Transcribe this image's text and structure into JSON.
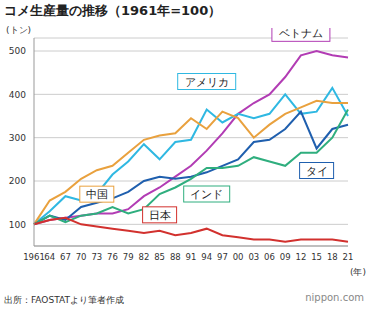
{
  "chart_data": {
    "type": "line",
    "title": "コメ生産量の推移（1961年=100）",
    "y_label": "(トン)",
    "x_label": "(年)",
    "source": "出所：FAOSTATより筆者作成",
    "credit": "nippon.com",
    "categories": [
      "1961",
      "64",
      "67",
      "70",
      "73",
      "76",
      "79",
      "82",
      "85",
      "88",
      "91",
      "94",
      "97",
      "00",
      "03",
      "06",
      "09",
      "12",
      "15",
      "18",
      "21"
    ],
    "series": [
      {
        "name": "ベトナム",
        "color": "#b23cb4",
        "values": [
          100,
          110,
          115,
          120,
          125,
          125,
          135,
          165,
          185,
          210,
          235,
          270,
          310,
          355,
          380,
          400,
          440,
          490,
          500,
          490,
          485
        ]
      },
      {
        "name": "アメリカ",
        "color": "#2fb8e2",
        "values": [
          100,
          130,
          165,
          155,
          170,
          215,
          245,
          285,
          250,
          290,
          295,
          365,
          335,
          355,
          345,
          355,
          400,
          355,
          360,
          415,
          350
        ]
      },
      {
        "name": "中国",
        "color": "#e9a13e",
        "values": [
          100,
          155,
          175,
          205,
          225,
          235,
          265,
          295,
          305,
          310,
          345,
          320,
          360,
          345,
          300,
          330,
          355,
          370,
          385,
          380,
          380
        ]
      },
      {
        "name": "タイ",
        "color": "#1f5fae",
        "values": [
          100,
          120,
          110,
          140,
          150,
          160,
          175,
          200,
          210,
          205,
          210,
          220,
          235,
          250,
          290,
          295,
          320,
          360,
          275,
          320,
          330
        ]
      },
      {
        "name": "インド",
        "color": "#2fae7e",
        "values": [
          100,
          120,
          105,
          120,
          125,
          140,
          125,
          135,
          170,
          185,
          205,
          230,
          230,
          235,
          255,
          245,
          235,
          265,
          265,
          300,
          365
        ]
      },
      {
        "name": "日本",
        "color": "#d2312e",
        "values": [
          100,
          110,
          115,
          100,
          95,
          90,
          85,
          80,
          85,
          75,
          80,
          90,
          75,
          70,
          65,
          65,
          60,
          65,
          65,
          65,
          60
        ]
      }
    ],
    "ylim": [
      50,
      530
    ],
    "yticks": [
      100,
      200,
      300,
      400,
      500
    ],
    "grid": true
  }
}
